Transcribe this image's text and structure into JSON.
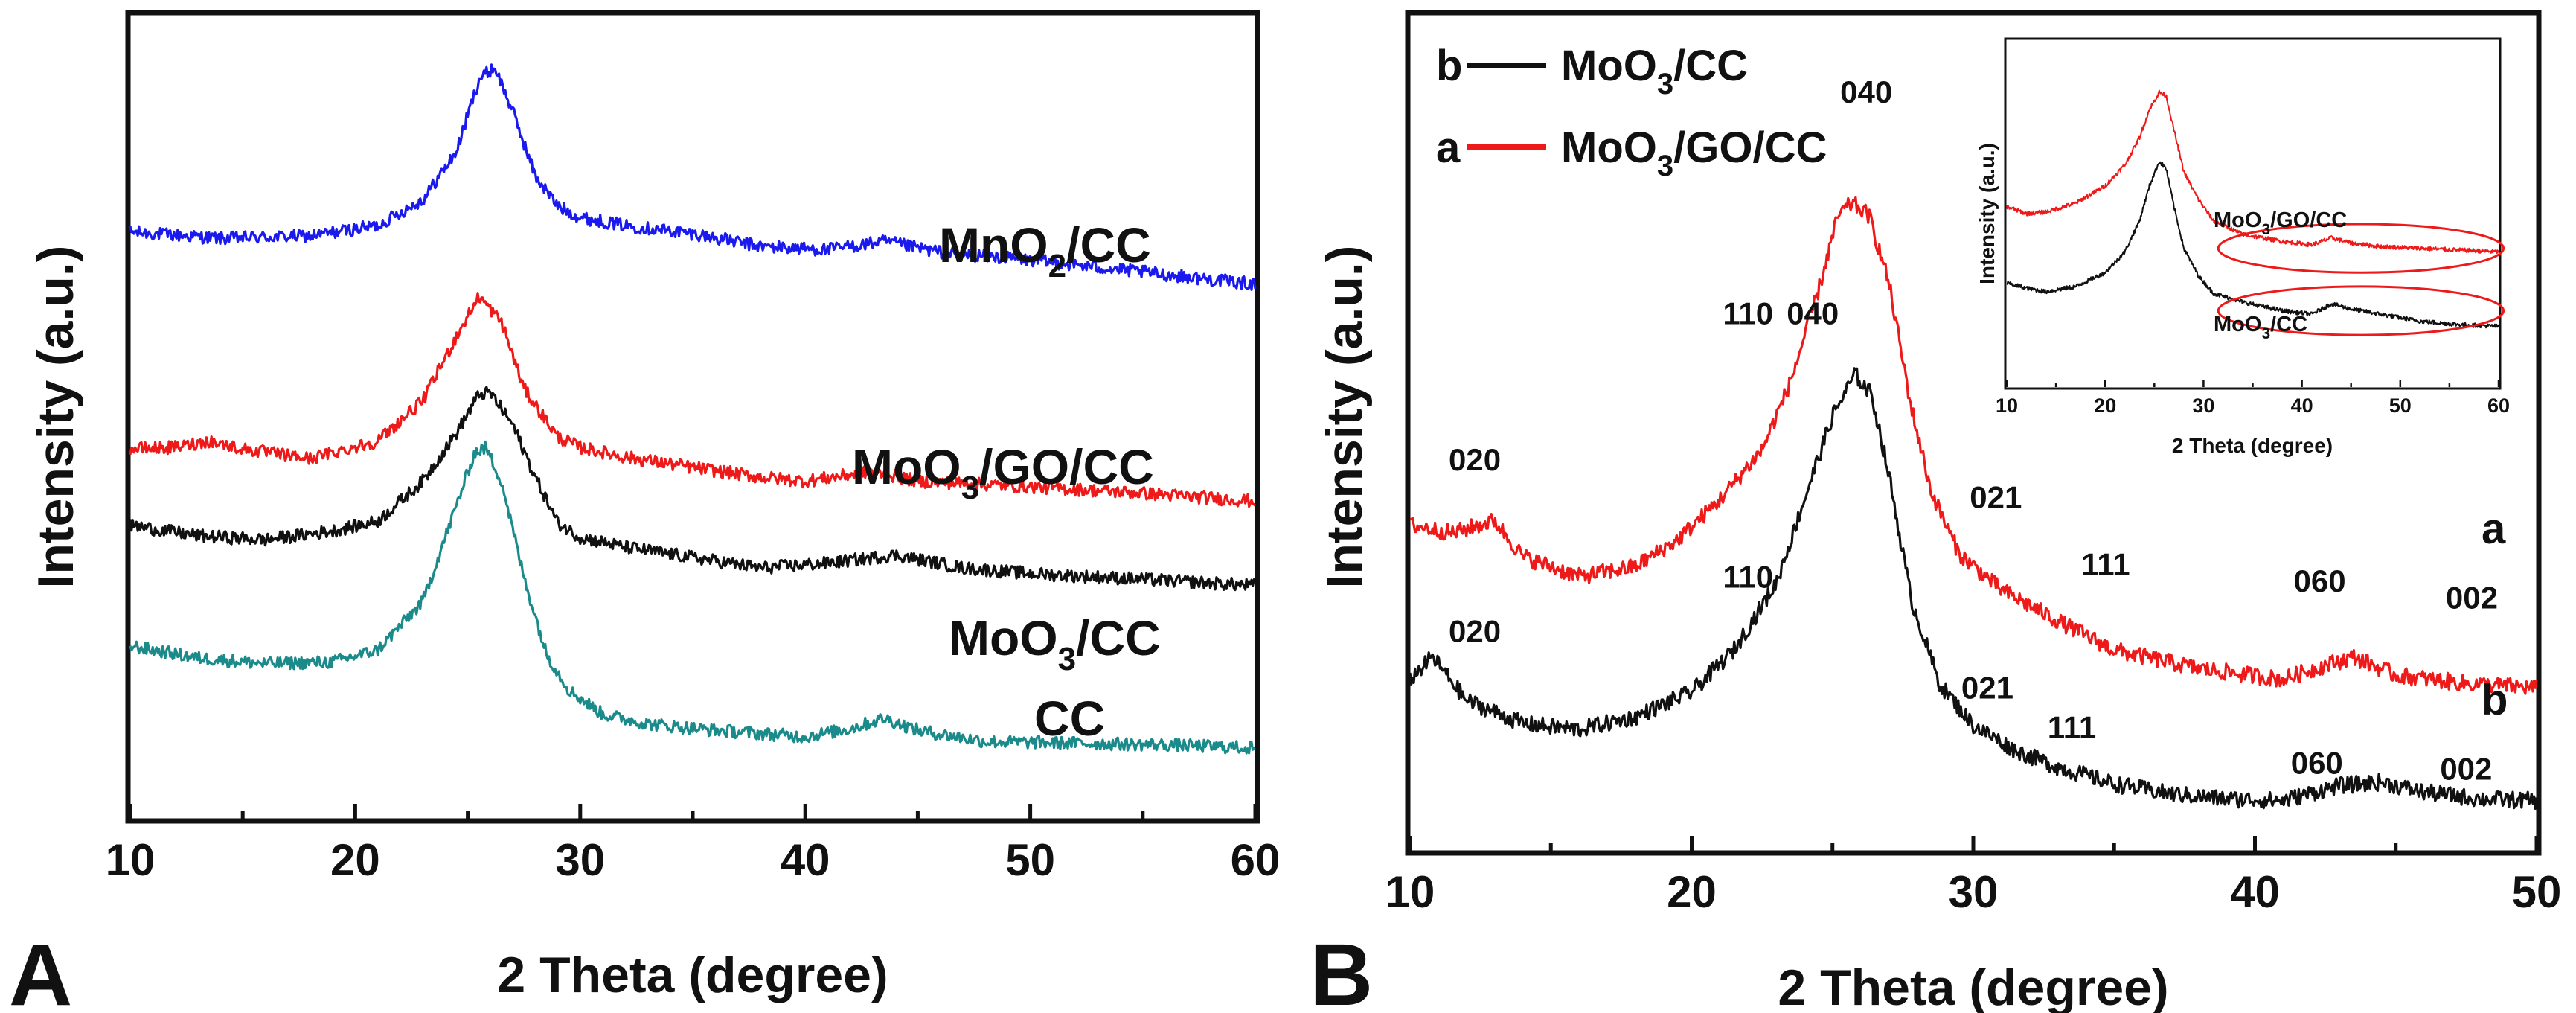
{
  "chart_data": [
    {
      "panel": "A",
      "type": "line",
      "title": "",
      "xlabel": "2 Theta (degree)",
      "ylabel": "Intensity (a.u.)",
      "xlim": [
        10,
        60
      ],
      "ylim": [
        0,
        1
      ],
      "x_ticks": [
        "10",
        "20",
        "30",
        "40",
        "50",
        "60"
      ],
      "grid": false,
      "series": [
        {
          "name": "MnO2/CC",
          "label": "MnO",
          "label_sub": "2",
          "label_tail": "/CC",
          "color": "#1a1aee",
          "x": [
            10,
            14,
            18,
            21,
            23,
            24.5,
            25.5,
            26.2,
            27,
            28,
            29,
            30,
            32,
            35,
            38,
            41,
            43.5,
            46,
            50,
            55,
            60
          ],
          "y": [
            0.73,
            0.722,
            0.725,
            0.738,
            0.77,
            0.83,
            0.92,
            0.935,
            0.88,
            0.8,
            0.762,
            0.748,
            0.738,
            0.728,
            0.712,
            0.708,
            0.718,
            0.705,
            0.695,
            0.68,
            0.665
          ]
        },
        {
          "name": "MoO3/GO/CC",
          "label": "MoO",
          "label_sub": "3",
          "label_tail": "/GO/CC",
          "color": "#ee1a1a",
          "x": [
            10,
            12,
            13.5,
            15,
            18,
            21,
            23,
            24.5,
            25.5,
            26.5,
            27.5,
            29,
            30,
            32,
            35,
            38,
            40,
            43,
            45,
            50,
            55,
            60
          ],
          "y": [
            0.46,
            0.462,
            0.47,
            0.46,
            0.448,
            0.47,
            0.52,
            0.6,
            0.65,
            0.618,
            0.535,
            0.475,
            0.462,
            0.45,
            0.437,
            0.425,
            0.42,
            0.432,
            0.42,
            0.413,
            0.405,
            0.395
          ]
        },
        {
          "name": "MoO3/CC",
          "label": "MoO",
          "label_sub": "3",
          "label_tail": "/CC",
          "color": "#111111",
          "x": [
            10,
            13,
            16,
            19,
            21,
            23,
            24.5,
            25.5,
            26,
            27,
            28,
            29,
            30,
            32,
            35,
            38,
            41,
            44,
            47,
            50,
            55,
            60
          ],
          "y": [
            0.365,
            0.352,
            0.347,
            0.358,
            0.37,
            0.42,
            0.48,
            0.528,
            0.53,
            0.49,
            0.425,
            0.368,
            0.35,
            0.338,
            0.325,
            0.312,
            0.318,
            0.328,
            0.312,
            0.305,
            0.298,
            0.29
          ]
        },
        {
          "name": "CC",
          "label": "CC",
          "label_sub": "",
          "label_tail": "",
          "color": "#1b8a8a",
          "x": [
            10,
            13,
            16,
            19,
            21,
            23,
            24.5,
            25.3,
            25.8,
            26.5,
            27.5,
            28.5,
            29.5,
            31,
            33,
            36,
            40,
            42,
            43.5,
            45,
            48,
            52,
            56,
            60
          ],
          "y": [
            0.215,
            0.2,
            0.193,
            0.195,
            0.21,
            0.27,
            0.39,
            0.455,
            0.462,
            0.42,
            0.3,
            0.205,
            0.16,
            0.13,
            0.118,
            0.11,
            0.102,
            0.112,
            0.125,
            0.11,
            0.096,
            0.094,
            0.092,
            0.088
          ]
        }
      ]
    },
    {
      "panel": "B",
      "type": "line",
      "title": "",
      "xlabel": "2 Theta (degree)",
      "ylabel": "Intensity (a.u.)",
      "xlim": [
        10,
        50
      ],
      "ylim": [
        0,
        1
      ],
      "x_ticks": [
        "10",
        "20",
        "30",
        "40",
        "50"
      ],
      "grid": false,
      "legend": [
        {
          "prefix": "b",
          "text": "MoO",
          "sub": "3",
          "tail": "/CC",
          "color": "#111111"
        },
        {
          "prefix": "a",
          "text": "MoO",
          "sub": "3",
          "tail": "/GO/CC",
          "color": "#ee1a1a"
        }
      ],
      "series": [
        {
          "name": "MoO3/GO/CC",
          "letter": "a",
          "color": "#ee1a1a",
          "x": [
            10,
            11.5,
            13,
            14,
            16,
            18,
            19.5,
            21,
            22.5,
            23.5,
            24.5,
            25.2,
            25.7,
            26.3,
            27,
            27.8,
            28.5,
            29.5,
            31,
            33,
            35,
            38,
            41,
            42.5,
            43.5,
            45,
            47.5,
            50
          ],
          "y": [
            0.39,
            0.38,
            0.395,
            0.352,
            0.328,
            0.34,
            0.372,
            0.42,
            0.48,
            0.56,
            0.67,
            0.76,
            0.775,
            0.76,
            0.68,
            0.53,
            0.43,
            0.355,
            0.312,
            0.275,
            0.24,
            0.218,
            0.205,
            0.222,
            0.232,
            0.21,
            0.2,
            0.195
          ]
        },
        {
          "name": "MoO3/CC",
          "letter": "b",
          "color": "#111111",
          "x": [
            10,
            10.8,
            12,
            14,
            16,
            18,
            20,
            21.5,
            23,
            24,
            25,
            25.8,
            26.4,
            27,
            27.8,
            28.8,
            30,
            31.5,
            33,
            35,
            37,
            39,
            41,
            43,
            44.5,
            46,
            48,
            50
          ],
          "y": [
            0.205,
            0.232,
            0.18,
            0.152,
            0.145,
            0.16,
            0.19,
            0.24,
            0.32,
            0.42,
            0.52,
            0.57,
            0.545,
            0.45,
            0.3,
            0.2,
            0.15,
            0.12,
            0.1,
            0.08,
            0.068,
            0.062,
            0.06,
            0.078,
            0.082,
            0.07,
            0.062,
            0.06
          ]
        }
      ],
      "peak_labels_a": [
        {
          "text": "020",
          "x": 12.3,
          "y": 0.455
        },
        {
          "text": "110",
          "x": 22.0,
          "y": 0.63
        },
        {
          "text": "040",
          "x": 26.2,
          "y": 0.895
        },
        {
          "text": "021",
          "x": 30.8,
          "y": 0.41
        },
        {
          "text": "111",
          "x": 34.7,
          "y": 0.33
        },
        {
          "text": "060",
          "x": 42.3,
          "y": 0.31
        },
        {
          "text": "002",
          "x": 47.7,
          "y": 0.29
        }
      ],
      "peak_labels_b": [
        {
          "text": "020",
          "x": 12.3,
          "y": 0.25
        },
        {
          "text": "110",
          "x": 22.0,
          "y": 0.315
        },
        {
          "text": "040",
          "x": 24.3,
          "y": 0.63
        },
        {
          "text": "021",
          "x": 30.5,
          "y": 0.182
        },
        {
          "text": "111",
          "x": 33.5,
          "y": 0.135
        },
        {
          "text": "060",
          "x": 42.2,
          "y": 0.092
        },
        {
          "text": "002",
          "x": 47.5,
          "y": 0.085
        }
      ],
      "inset": {
        "xlabel": "2 Theta (degree)",
        "ylabel": "Intensity (a.u.)",
        "xlim": [
          10,
          60
        ],
        "ylim": [
          0,
          1
        ],
        "x_ticks": [
          "10",
          "20",
          "30",
          "40",
          "50",
          "60"
        ],
        "label_top": {
          "text": "MoO",
          "sub": "3",
          "tail": "/GO/CC"
        },
        "label_bottom": {
          "text": "MoO",
          "sub": "3",
          "tail": "/CC"
        },
        "series": [
          {
            "name": "MoO3/GO/CC",
            "color": "#ee1a1a",
            "x": [
              10,
              12,
              14,
              17,
              20,
              22,
              23.5,
              24.5,
              25.5,
              26.2,
              27,
              28,
              29.5,
              31,
              34,
              38,
              41,
              43,
              45,
              48,
              52,
              56,
              60
            ],
            "y": [
              0.52,
              0.5,
              0.505,
              0.53,
              0.58,
              0.64,
              0.72,
              0.8,
              0.85,
              0.84,
              0.74,
              0.62,
              0.54,
              0.48,
              0.44,
              0.42,
              0.41,
              0.43,
              0.415,
              0.405,
              0.4,
              0.395,
              0.39
            ]
          },
          {
            "name": "MoO3/CC",
            "color": "#111111",
            "x": [
              10,
              12,
              14,
              17,
              20,
              22,
              23.5,
              24.5,
              25.5,
              26.2,
              27,
              28,
              29.5,
              31,
              34,
              38,
              41,
              43,
              45,
              48,
              52,
              56,
              60
            ],
            "y": [
              0.3,
              0.285,
              0.275,
              0.29,
              0.33,
              0.39,
              0.48,
              0.58,
              0.65,
              0.63,
              0.52,
              0.4,
              0.32,
              0.27,
              0.245,
              0.22,
              0.21,
              0.24,
              0.225,
              0.21,
              0.19,
              0.18,
              0.175
            ]
          }
        ],
        "ellipses": [
          {
            "cx": 46,
            "cy": 0.4,
            "rx": 14.5,
            "ry": 0.07
          },
          {
            "cx": 46,
            "cy": 0.22,
            "rx": 14.5,
            "ry": 0.07
          }
        ]
      }
    }
  ]
}
